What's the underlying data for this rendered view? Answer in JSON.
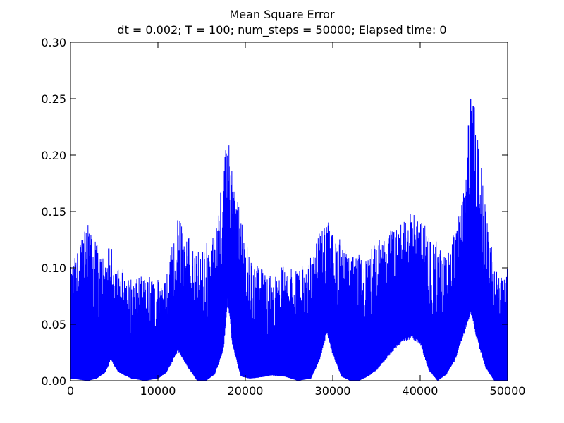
{
  "chart_data": {
    "type": "line",
    "title": "Mean Square Error",
    "subtitle": "dt = 0.002; T = 100; num_steps = 50000; Elapsed time: 0",
    "xlabel": "",
    "ylabel": "",
    "xlim": [
      0,
      50000
    ],
    "ylim": [
      0,
      0.3
    ],
    "xticks": [
      "0",
      "10000",
      "20000",
      "30000",
      "40000",
      "50000"
    ],
    "xtick_values": [
      0,
      10000,
      20000,
      30000,
      40000,
      50000
    ],
    "yticks": [
      "0.00",
      "0.05",
      "0.10",
      "0.15",
      "0.20",
      "0.25",
      "0.30"
    ],
    "ytick_values": [
      0,
      0.05,
      0.1,
      0.15,
      0.2,
      0.25,
      0.3
    ],
    "grid": false,
    "legend": "none",
    "series": [
      {
        "color": "#0000ff",
        "description_points": {
          "x": [
            0,
            1000,
            2000,
            3000,
            4000,
            4600,
            5500,
            7000,
            8500,
            10000,
            11000,
            12300,
            13500,
            14500,
            15500,
            16500,
            17500,
            18000,
            18500,
            19500,
            20500,
            21500,
            23000,
            24500,
            26000,
            27500,
            28500,
            29300,
            30000,
            31000,
            32000,
            33000,
            34000,
            35000,
            36500,
            38000,
            39000,
            40000,
            41000,
            42000,
            43000,
            44000,
            45000,
            45800,
            46500,
            47500,
            48500,
            49500,
            50000
          ],
          "envelope": [
            0.1,
            0.12,
            0.14,
            0.12,
            0.11,
            0.12,
            0.1,
            0.09,
            0.09,
            0.09,
            0.1,
            0.14,
            0.13,
            0.11,
            0.12,
            0.13,
            0.18,
            0.225,
            0.19,
            0.14,
            0.11,
            0.1,
            0.09,
            0.1,
            0.1,
            0.11,
            0.13,
            0.14,
            0.13,
            0.12,
            0.11,
            0.11,
            0.11,
            0.12,
            0.13,
            0.14,
            0.15,
            0.14,
            0.13,
            0.12,
            0.11,
            0.13,
            0.17,
            0.265,
            0.22,
            0.15,
            0.1,
            0.09,
            0.105
          ],
          "baseline": [
            0.002,
            0.001,
            0.0,
            0.002,
            0.008,
            0.02,
            0.008,
            0.002,
            0.0,
            0.002,
            0.008,
            0.029,
            0.012,
            0.0,
            0.0,
            0.006,
            0.03,
            0.078,
            0.035,
            0.004,
            0.002,
            0.003,
            0.005,
            0.004,
            0.0,
            0.002,
            0.02,
            0.046,
            0.025,
            0.004,
            0.0,
            0.0,
            0.004,
            0.01,
            0.025,
            0.038,
            0.041,
            0.036,
            0.01,
            0.0,
            0.006,
            0.02,
            0.045,
            0.064,
            0.04,
            0.012,
            0.0,
            0.0,
            0.0
          ]
        }
      }
    ]
  }
}
